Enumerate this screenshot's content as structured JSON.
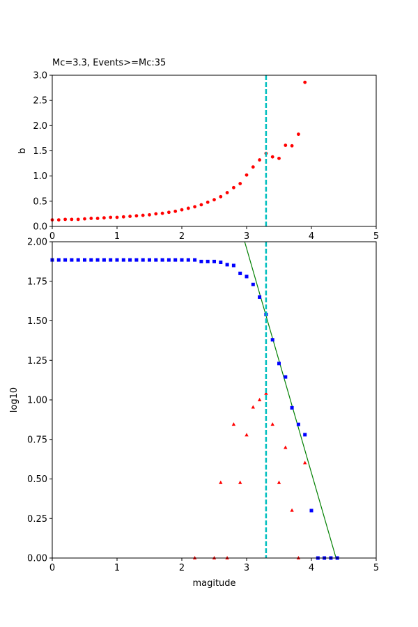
{
  "chart_data": [
    {
      "type": "scatter",
      "title": "Mc=3.3, Events>=Mc:35",
      "xlabel": "",
      "ylabel": "b",
      "xlim": [
        0,
        5
      ],
      "ylim": [
        0,
        3
      ],
      "xticks": [
        0,
        1,
        2,
        3,
        4,
        5
      ],
      "yticks": [
        0.0,
        0.5,
        1.0,
        1.5,
        2.0,
        2.5,
        3.0
      ],
      "grid": false,
      "series": [
        {
          "marker": "circle",
          "color": "#ff0000",
          "x": [
            0.0,
            0.1,
            0.2,
            0.3,
            0.4,
            0.5,
            0.6,
            0.7,
            0.8,
            0.9,
            1.0,
            1.1,
            1.2,
            1.3,
            1.4,
            1.5,
            1.6,
            1.7,
            1.8,
            1.9,
            2.0,
            2.1,
            2.2,
            2.3,
            2.4,
            2.5,
            2.6,
            2.7,
            2.8,
            2.9,
            3.0,
            3.1,
            3.2,
            3.3,
            3.4,
            3.5,
            3.6,
            3.7,
            3.8,
            3.9
          ],
          "y": [
            0.13,
            0.13,
            0.14,
            0.14,
            0.14,
            0.15,
            0.16,
            0.16,
            0.17,
            0.18,
            0.18,
            0.19,
            0.2,
            0.21,
            0.22,
            0.23,
            0.25,
            0.26,
            0.28,
            0.3,
            0.33,
            0.36,
            0.39,
            0.43,
            0.48,
            0.53,
            0.59,
            0.67,
            0.77,
            0.85,
            1.02,
            1.18,
            1.32,
            1.45,
            1.38,
            1.35,
            1.61,
            1.6,
            1.83,
            2.86
          ]
        }
      ],
      "vline": {
        "x": 3.3,
        "color": "#00bfbf",
        "style": "dashed"
      }
    },
    {
      "type": "scatter",
      "title": "",
      "xlabel": "magitude",
      "ylabel": "log10",
      "xlim": [
        0,
        5
      ],
      "ylim": [
        0,
        2
      ],
      "xticks": [
        0,
        1,
        2,
        3,
        4,
        5
      ],
      "yticks": [
        "0.00",
        "0.25",
        "0.50",
        "0.75",
        "1.00",
        "1.25",
        "1.50",
        "1.75",
        "2.00"
      ],
      "grid": false,
      "series": [
        {
          "marker": "square",
          "color": "#0000ff",
          "x": [
            0.0,
            0.1,
            0.2,
            0.3,
            0.4,
            0.5,
            0.6,
            0.7,
            0.8,
            0.9,
            1.0,
            1.1,
            1.2,
            1.3,
            1.4,
            1.5,
            1.6,
            1.7,
            1.8,
            1.9,
            2.0,
            2.1,
            2.2,
            2.3,
            2.4,
            2.5,
            2.6,
            2.7,
            2.8,
            2.9,
            3.0,
            3.1,
            3.2,
            3.3,
            3.4,
            3.5,
            3.6,
            3.7,
            3.8,
            3.9,
            4.0,
            4.1,
            4.2,
            4.3,
            4.4
          ],
          "y": [
            1.885,
            1.885,
            1.885,
            1.885,
            1.885,
            1.885,
            1.885,
            1.885,
            1.885,
            1.885,
            1.885,
            1.885,
            1.885,
            1.885,
            1.885,
            1.885,
            1.885,
            1.885,
            1.885,
            1.885,
            1.885,
            1.885,
            1.885,
            1.875,
            1.875,
            1.875,
            1.87,
            1.855,
            1.85,
            1.8,
            1.78,
            1.73,
            1.65,
            1.54,
            1.38,
            1.23,
            1.145,
            0.95,
            0.845,
            0.78,
            0.3,
            0.0,
            0.0,
            0.0,
            0.0
          ]
        },
        {
          "marker": "triangle",
          "color": "#ff0000",
          "x": [
            2.2,
            2.5,
            2.6,
            2.7,
            2.8,
            2.9,
            3.0,
            3.1,
            3.2,
            3.3,
            3.4,
            3.5,
            3.6,
            3.7,
            3.8,
            3.9
          ],
          "y": [
            0.0,
            0.0,
            0.477,
            0.0,
            0.845,
            0.477,
            0.778,
            0.954,
            1.0,
            1.041,
            0.845,
            0.477,
            0.699,
            0.301,
            0.0,
            0.602
          ]
        }
      ],
      "fit_line": {
        "x": [
          2.97,
          4.38
        ],
        "y": [
          2.0,
          0.0
        ],
        "color": "#008000"
      },
      "vline": {
        "x": 3.3,
        "color": "#00bfbf",
        "style": "dashed"
      }
    }
  ]
}
